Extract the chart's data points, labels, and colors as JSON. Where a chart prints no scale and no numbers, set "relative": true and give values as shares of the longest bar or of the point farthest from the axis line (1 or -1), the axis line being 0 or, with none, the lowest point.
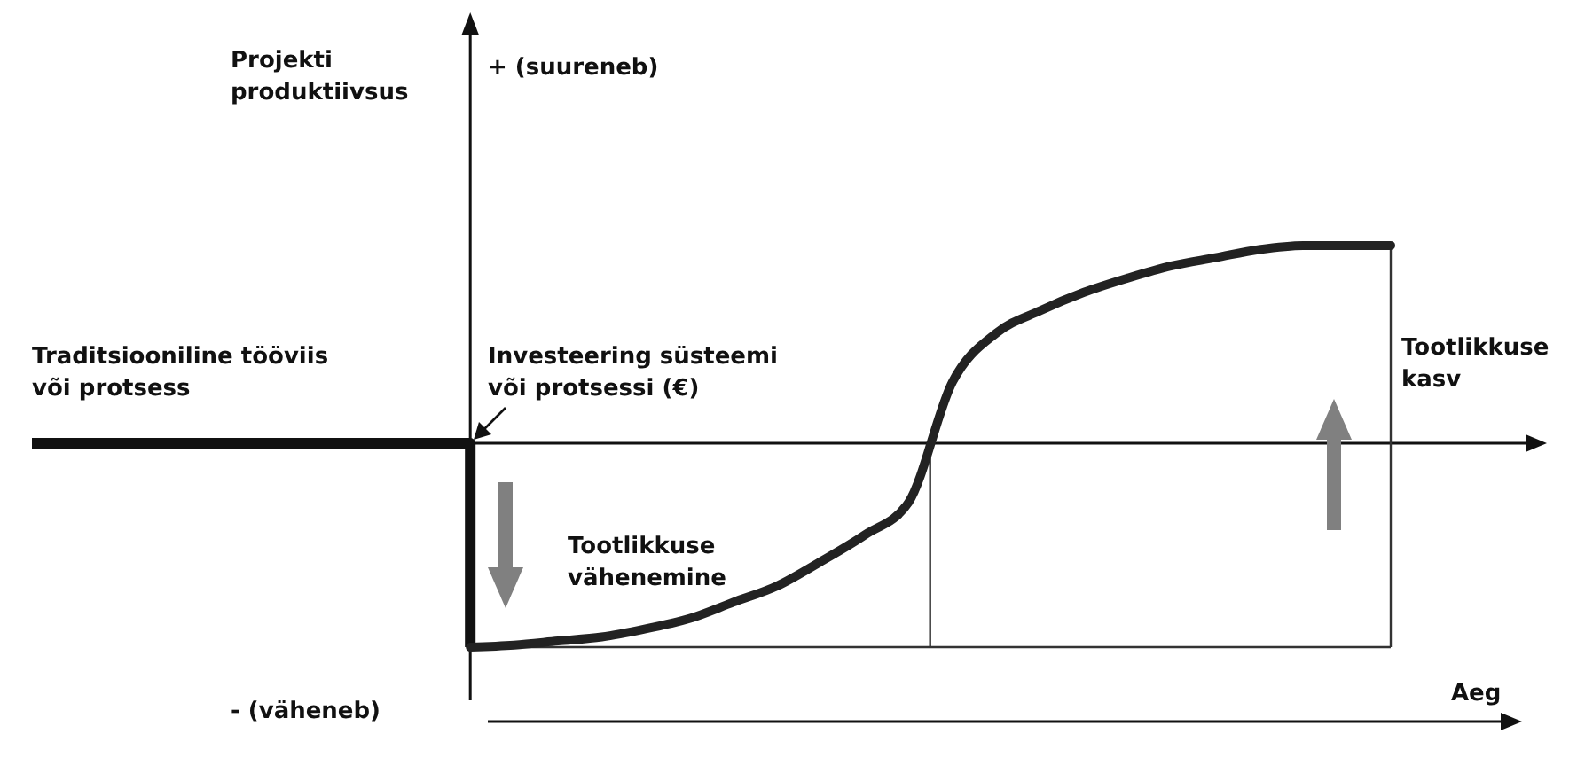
{
  "chart_data": {
    "type": "line",
    "relative": true,
    "xlabel": "Aeg",
    "categories": [
      null,
      null,
      null,
      null,
      null,
      null,
      null,
      null,
      null,
      null,
      null,
      null,
      null,
      null,
      null,
      null,
      null,
      null,
      null,
      null,
      null,
      null,
      null,
      null,
      null,
      null,
      null,
      null,
      null,
      null,
      null,
      null
    ],
    "series": [
      {
        "type": "step",
        "color": "#111111",
        "values": [
          0,
          0,
          0,
          0,
          0,
          0,
          0,
          0,
          0,
          0,
          -1,
          null,
          null,
          null,
          null,
          null,
          null,
          null,
          null,
          null,
          null,
          null,
          null,
          null,
          null,
          null,
          null,
          null,
          null,
          null,
          null,
          null
        ]
      },
      {
        "type": "line",
        "color": "#222222",
        "values": [
          null,
          null,
          null,
          null,
          null,
          null,
          null,
          null,
          null,
          null,
          -1,
          -0.99,
          -0.97,
          -0.95,
          -0.91,
          -0.86,
          -0.78,
          -0.7,
          -0.58,
          -0.45,
          -0.29,
          0.3,
          0.54,
          0.65,
          0.74,
          0.81,
          0.87,
          0.91,
          0.95,
          0.97,
          0.97,
          0.97
        ]
      }
    ],
    "ref_lines": [
      {
        "axis": "y",
        "value": 0,
        "color": "#111111"
      },
      {
        "axis": "y",
        "value": -1,
        "color": "#333333"
      }
    ],
    "annotations": [
      "Projekti\nproduktiivsus",
      "+ (suureneb)",
      "- (väheneb)",
      "Traditsiooniline tööviis\nvõi protsess",
      "Investeering süsteemi\nvõi protsessi (€)",
      "Tootlikkuse\nvähenemine",
      "Tootlikkuse\nkasv"
    ]
  }
}
